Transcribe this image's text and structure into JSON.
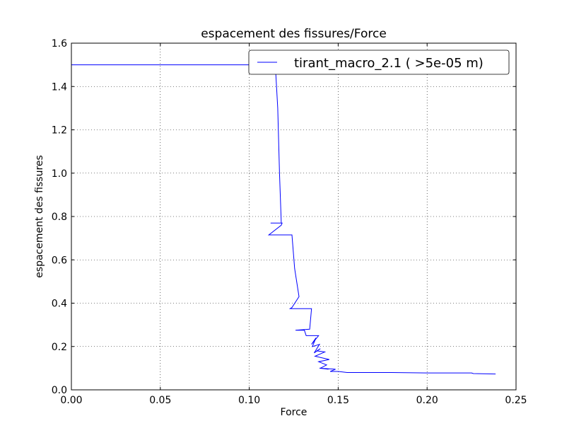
{
  "chart_data": {
    "type": "line",
    "title": "espacement des fissures/Force",
    "xlabel": "Force",
    "ylabel": "espacement des fissures",
    "xlim": [
      0.0,
      0.25
    ],
    "ylim": [
      0.0,
      1.6
    ],
    "xticks": [
      "0.00",
      "0.05",
      "0.10",
      "0.15",
      "0.20",
      "0.25"
    ],
    "yticks": [
      "0.0",
      "0.2",
      "0.4",
      "0.6",
      "0.8",
      "1.0",
      "1.2",
      "1.4",
      "1.6"
    ],
    "grid": true,
    "legend_position": "top-right",
    "series": [
      {
        "name": "tirant_macro_2.1 ( >5e-05 m)",
        "color": "#0000ff",
        "x": [
          0.0,
          0.114,
          0.1148,
          0.116,
          0.117,
          0.118,
          0.112,
          0.1185,
          0.118,
          0.111,
          0.124,
          0.1255,
          0.128,
          0.124,
          0.123,
          0.1245,
          0.135,
          0.134,
          0.126,
          0.131,
          0.132,
          0.139,
          0.135,
          0.1375,
          0.1355,
          0.1395,
          0.1365,
          0.14,
          0.138,
          0.1425,
          0.137,
          0.145,
          0.139,
          0.1435,
          0.14,
          0.1445,
          0.1395,
          0.1485,
          0.1455,
          0.15,
          0.155,
          0.18,
          0.2,
          0.225,
          0.226,
          0.2385
        ],
        "y": [
          1.5,
          1.5,
          1.48,
          1.3,
          1.0,
          0.77,
          0.77,
          0.77,
          0.76,
          0.715,
          0.715,
          0.56,
          0.43,
          0.38,
          0.375,
          0.375,
          0.375,
          0.28,
          0.275,
          0.275,
          0.25,
          0.25,
          0.21,
          0.24,
          0.2,
          0.21,
          0.17,
          0.19,
          0.18,
          0.175,
          0.155,
          0.14,
          0.13,
          0.115,
          0.1,
          0.095,
          0.1,
          0.095,
          0.085,
          0.085,
          0.08,
          0.08,
          0.078,
          0.078,
          0.075,
          0.073
        ]
      }
    ]
  }
}
